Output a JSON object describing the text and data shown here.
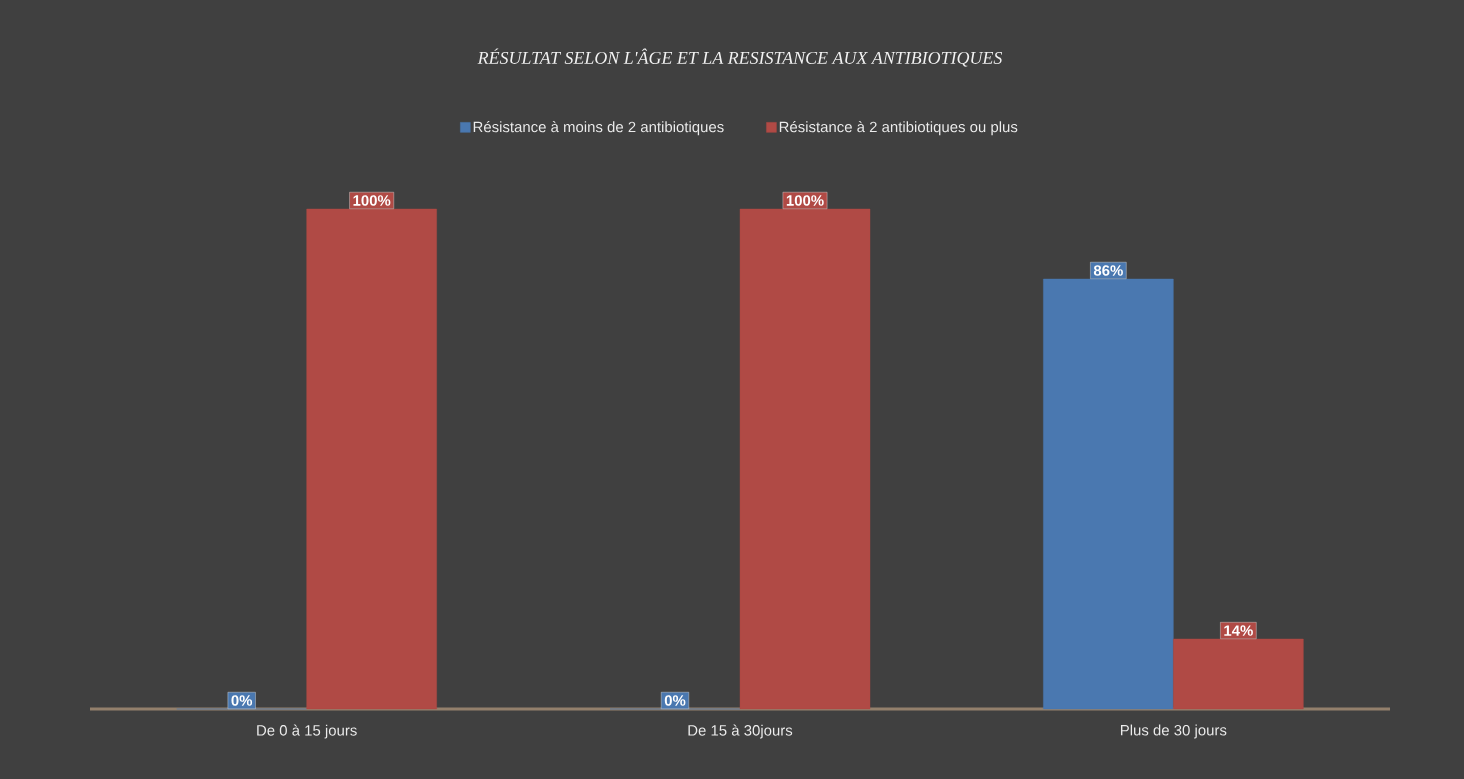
{
  "chart_data": {
    "type": "bar",
    "title": "RÉSULTAT SELON L'ÂGE ET LA RESISTANCE AUX ANTIBIOTIQUES",
    "categories": [
      "De 0 à 15 jours",
      "De 15 à 30jours",
      "Plus de 30 jours"
    ],
    "series": [
      {
        "name": "Résistance à moins de 2 antibiotiques",
        "color": "#4a78b0",
        "values": [
          0,
          0,
          86
        ],
        "value_labels": [
          "0%",
          "0%",
          "86%"
        ]
      },
      {
        "name": "Résistance à 2 antibiotiques ou plus",
        "color": "#b04a45",
        "values": [
          100,
          100,
          14
        ],
        "value_labels": [
          "100%",
          "100%",
          "14%"
        ]
      }
    ],
    "legend": "top"
  }
}
